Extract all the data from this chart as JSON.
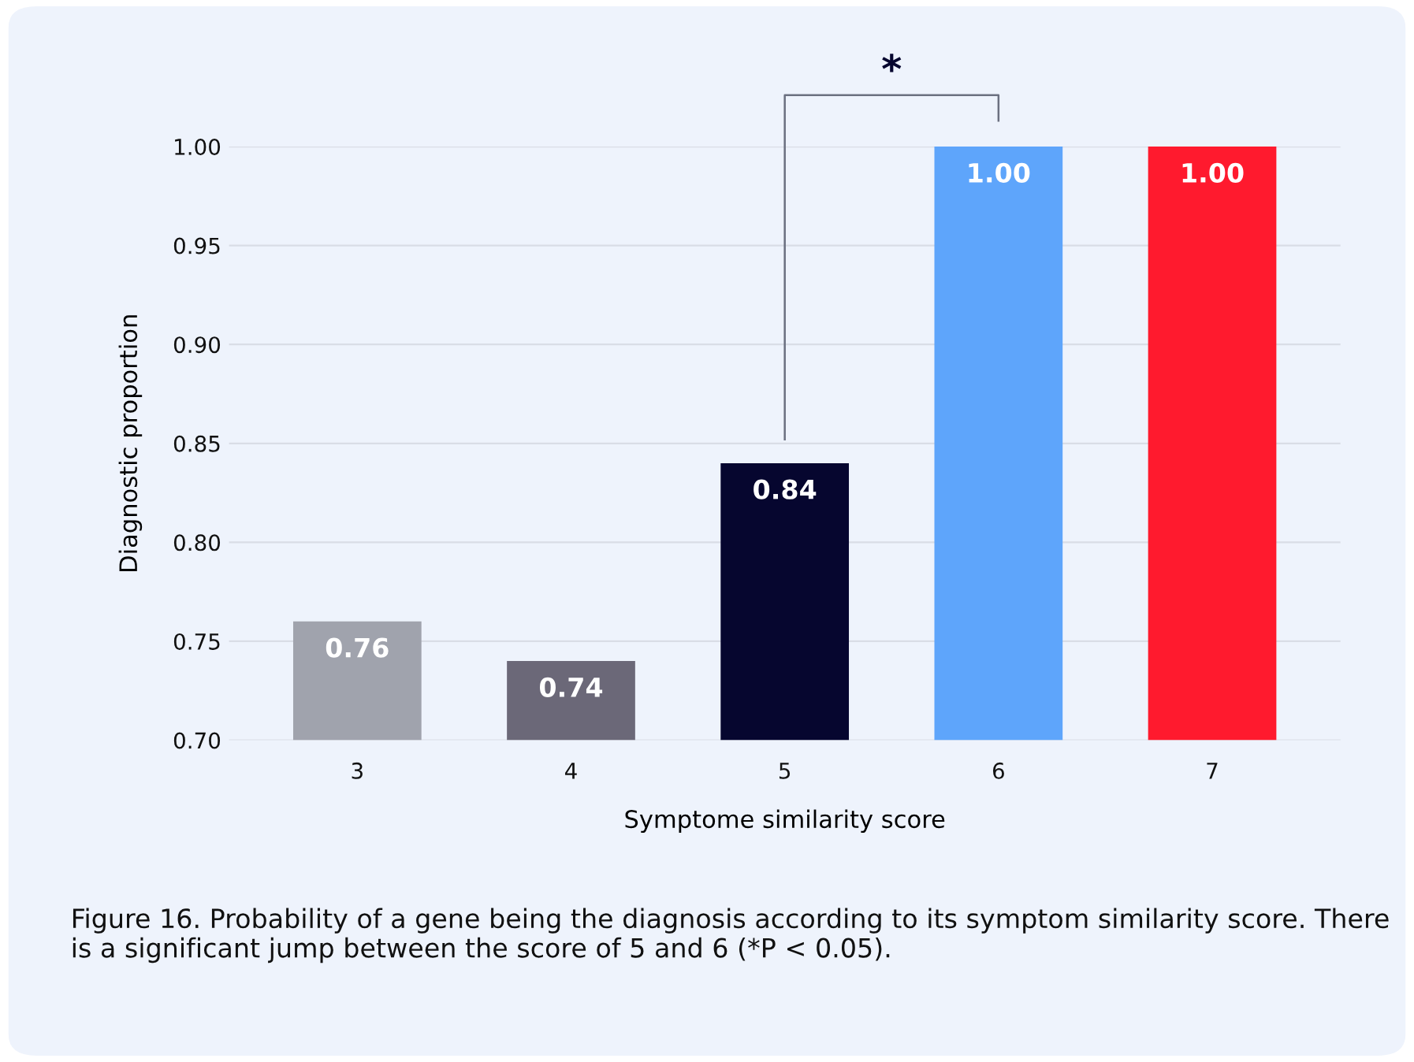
{
  "chart_data": {
    "type": "bar",
    "categories": [
      "3",
      "4",
      "5",
      "6",
      "7"
    ],
    "values": [
      0.76,
      0.74,
      0.84,
      1.0,
      1.0
    ],
    "colors": [
      "#a0a3ad",
      "#6b6878",
      "#06062f",
      "#5ea5fb",
      "#ff1a2e"
    ],
    "value_labels": [
      "0.76",
      "0.74",
      "0.84",
      "1.00",
      "1.00"
    ],
    "xlabel": "Symptome similarity score",
    "ylabel": "Diagnostic proportion",
    "ylim": [
      0.7,
      1.0
    ],
    "yticks": [
      {
        "value": 0.7,
        "label": "0.70"
      },
      {
        "value": 0.75,
        "label": "0.75"
      },
      {
        "value": 0.8,
        "label": "0.80"
      },
      {
        "value": 0.85,
        "label": "0.85"
      },
      {
        "value": 0.9,
        "label": "0.90"
      },
      {
        "value": 0.95,
        "label": "0.95"
      },
      {
        "value": 1.0,
        "label": "1.00"
      }
    ],
    "grid": "y",
    "annotations": [
      "*",
      "Figure 16. Probability of a gene being the diagnosis according to its symptom similarity score. There is a significant jump between the score of 5 and 6 (*P < 0.05)."
    ]
  }
}
